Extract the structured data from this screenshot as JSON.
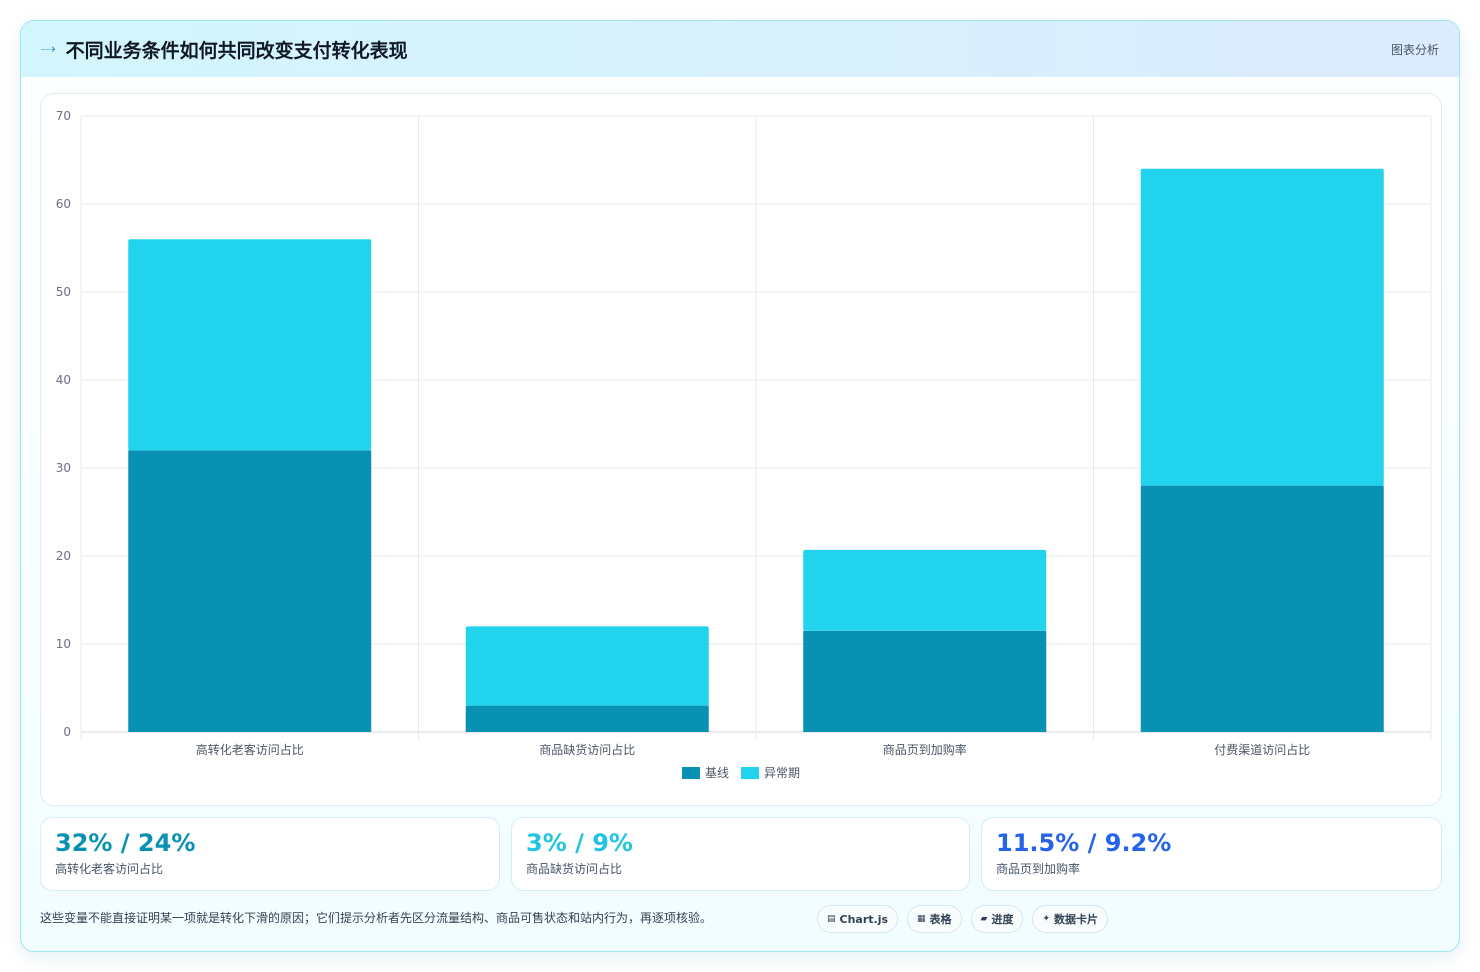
{
  "header": {
    "title": "不同业务条件如何共同改变支付转化表现",
    "right_label": "图表分析"
  },
  "chart_data": {
    "type": "bar",
    "stacked": true,
    "categories": [
      "高转化老客访问占比",
      "商品缺货访问占比",
      "商品页到加购率",
      "付费渠道访问占比"
    ],
    "series": [
      {
        "name": "基线",
        "values": [
          32,
          3,
          11.5,
          28
        ],
        "color": "#0891b2"
      },
      {
        "name": "异常期",
        "values": [
          24,
          9,
          9.2,
          36
        ],
        "color": "#22d3ee"
      }
    ],
    "ylim": [
      0,
      70
    ],
    "yticks": [
      0,
      10,
      20,
      30,
      40,
      50,
      60,
      70
    ],
    "grid": true,
    "legend_position": "bottom"
  },
  "stats": [
    {
      "value": "32% / 24%",
      "label": "高转化老客访问占比",
      "color": "#0891b2"
    },
    {
      "value": "3% / 9%",
      "label": "商品缺货访问占比",
      "color": "#22c5e0"
    },
    {
      "value": "11.5% / 9.2%",
      "label": "商品页到加购率",
      "color": "#2563eb"
    }
  ],
  "footer": {
    "note": "这些变量不能直接证明某一项就是转化下滑的原因；它们提示分析者先区分流量结构、商品可售状态和站内行为，再逐项核验。",
    "chips": [
      {
        "icon": "▤",
        "label": "Chart.js"
      },
      {
        "icon": "▦",
        "label": "表格"
      },
      {
        "icon": "▰",
        "label": "进度"
      },
      {
        "icon": "✦",
        "label": "数据卡片"
      }
    ]
  }
}
